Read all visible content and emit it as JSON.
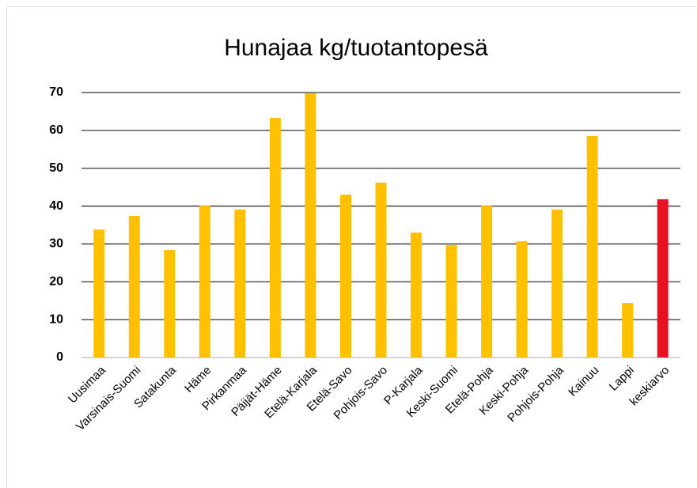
{
  "chart_data": {
    "type": "bar",
    "title": "Hunajaa kg/tuotantopesä",
    "categories": [
      "Uusimaa",
      "Varsinais-Suomi",
      "Satakunta",
      "Häme",
      "Pirkanmaa",
      "Päijät-Häme",
      "Etelä-Karjala",
      "Etelä-Savo",
      "Pohjois-Savo",
      "P-Karjala",
      "Keski-Suomi",
      "Etelä-Pohja",
      "Keski-Pohja",
      "Pohjois-Pohja",
      "Kainuu",
      "Lappi",
      "keskiarvo"
    ],
    "values": [
      33.8,
      37.4,
      28.4,
      40.1,
      39.1,
      63.3,
      69.8,
      43,
      46.2,
      33,
      29.7,
      40.1,
      30.7,
      39.1,
      58.5,
      14.4,
      41.8
    ],
    "colors": [
      "#ffc000",
      "#ffc000",
      "#ffc000",
      "#ffc000",
      "#ffc000",
      "#ffc000",
      "#ffc000",
      "#ffc000",
      "#ffc000",
      "#ffc000",
      "#ffc000",
      "#ffc000",
      "#ffc000",
      "#ffc000",
      "#ffc000",
      "#ffc000",
      "#e81123"
    ],
    "ylim": [
      0,
      70
    ],
    "yticks": [
      0,
      10,
      20,
      30,
      40,
      50,
      60,
      70
    ],
    "grid": true
  }
}
